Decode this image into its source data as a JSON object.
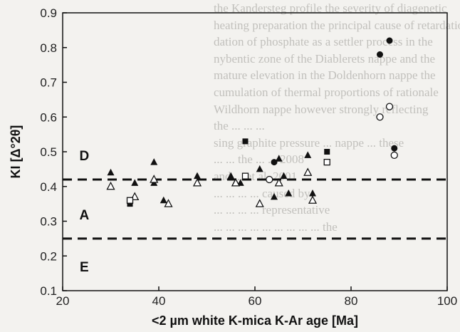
{
  "background_text": [
    "the Kandersteg profile the severity of diagenetic",
    "heating preparation the principal cause of retardation",
    "dation of phosphate as a settler process in the",
    "nybentic zone of the Diablerets nappe and the",
    "mature elevation in the Doldenhorn nappe the",
    "cumulation of thermal proportions of rationale",
    "Wildhorn nappe however strongly reflecting",
    "the ... ... ...",
    "sing graphite pressure ... nappe ... these",
    "... ... the ... ... 2008",
    "and ... et al. 2001",
    "... ... ... ... caused by",
    "... ... ... ... representative",
    "... ... ... ... ... ... ... ... ... the"
  ],
  "chart_data": {
    "type": "scatter",
    "ylabel": "KI [Δ°2θ]",
    "xlabel": "<2 µm white K-mica K-Ar age [Ma]",
    "xlim": [
      20,
      100
    ],
    "ylim": [
      0.1,
      0.9
    ],
    "x_ticks": [
      "20",
      "40",
      "60",
      "80",
      "100"
    ],
    "y_ticks": [
      "0.1",
      "0.2",
      "0.3",
      "0.4",
      "0.5",
      "0.6",
      "0.7",
      "0.8",
      "0.9"
    ],
    "grid": false,
    "reference_lines": [
      {
        "y": 0.42,
        "style": "dashed"
      },
      {
        "y": 0.25,
        "style": "dashed"
      }
    ],
    "zone_labels": [
      {
        "text": "D",
        "x": 24.5,
        "y": 0.49
      },
      {
        "text": "A",
        "x": 24.5,
        "y": 0.32
      },
      {
        "text": "E",
        "x": 24.5,
        "y": 0.17
      }
    ],
    "series": [
      {
        "marker": "filled-triangle",
        "points": [
          [
            30,
            0.44
          ],
          [
            35,
            0.41
          ],
          [
            39,
            0.47
          ],
          [
            39,
            0.41
          ],
          [
            41,
            0.36
          ],
          [
            48,
            0.43
          ],
          [
            55,
            0.43
          ],
          [
            57,
            0.41
          ],
          [
            64,
            0.37
          ],
          [
            61,
            0.45
          ],
          [
            65,
            0.48
          ],
          [
            66,
            0.43
          ],
          [
            67,
            0.38
          ],
          [
            71,
            0.49
          ],
          [
            72,
            0.38
          ]
        ]
      },
      {
        "marker": "open-triangle",
        "points": [
          [
            30,
            0.4
          ],
          [
            35,
            0.37
          ],
          [
            39,
            0.42
          ],
          [
            42,
            0.35
          ],
          [
            48,
            0.41
          ],
          [
            56,
            0.41
          ],
          [
            56,
            0.41
          ],
          [
            61,
            0.35
          ],
          [
            65,
            0.41
          ],
          [
            71,
            0.44
          ],
          [
            72,
            0.36
          ]
        ]
      },
      {
        "marker": "filled-square",
        "points": [
          [
            34,
            0.35
          ],
          [
            58,
            0.53
          ],
          [
            75,
            0.5
          ]
        ]
      },
      {
        "marker": "open-square",
        "points": [
          [
            34,
            0.36
          ],
          [
            58,
            0.43
          ],
          [
            75,
            0.47
          ]
        ]
      },
      {
        "marker": "filled-circle",
        "points": [
          [
            64,
            0.47
          ],
          [
            86,
            0.78
          ],
          [
            88,
            0.82
          ],
          [
            89,
            0.51
          ]
        ]
      },
      {
        "marker": "open-circle",
        "points": [
          [
            63,
            0.42
          ],
          [
            86,
            0.6
          ],
          [
            88,
            0.63
          ],
          [
            89,
            0.49
          ]
        ]
      }
    ]
  }
}
